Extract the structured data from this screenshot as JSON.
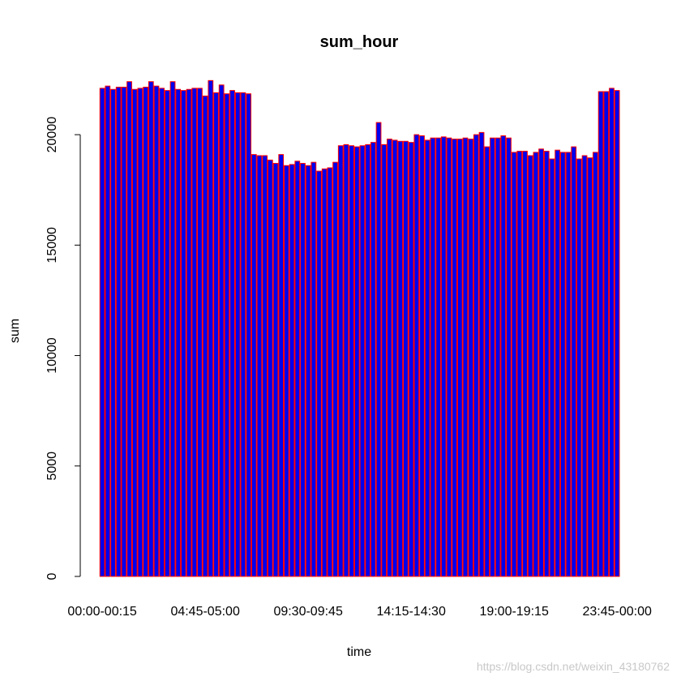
{
  "chart_data": {
    "type": "bar",
    "title": "sum_hour",
    "xlabel": "time",
    "ylabel": "sum",
    "ylim": [
      0,
      22500
    ],
    "y_ticks": [
      0,
      5000,
      10000,
      15000,
      20000
    ],
    "x_tick_labels": [
      {
        "index": 0,
        "label": "00:00-00:15"
      },
      {
        "index": 19,
        "label": "04:45-05:00"
      },
      {
        "index": 38,
        "label": "09:30-09:45"
      },
      {
        "index": 57,
        "label": "14:15-14:30"
      },
      {
        "index": 76,
        "label": "19:00-19:15"
      },
      {
        "index": 95,
        "label": "23:45-00:00"
      }
    ],
    "bar_fill": "#0000ee",
    "bar_border": "#ff0000",
    "grid": false,
    "values": [
      22100,
      22200,
      22050,
      22150,
      22150,
      22400,
      22050,
      22100,
      22150,
      22400,
      22200,
      22100,
      22000,
      22400,
      22050,
      22000,
      22050,
      22100,
      22100,
      21750,
      22450,
      21900,
      22250,
      21850,
      22000,
      21900,
      21900,
      21850,
      19100,
      19050,
      19050,
      18850,
      18700,
      19100,
      18600,
      18650,
      18800,
      18700,
      18600,
      18750,
      18350,
      18450,
      18500,
      18750,
      19500,
      19550,
      19500,
      19450,
      19500,
      19550,
      19650,
      20550,
      19550,
      19800,
      19750,
      19700,
      19700,
      19650,
      20000,
      19950,
      19750,
      19850,
      19850,
      19900,
      19850,
      19800,
      19800,
      19850,
      19800,
      20000,
      20100,
      19450,
      19850,
      19850,
      19950,
      19850,
      19200,
      19250,
      19250,
      19050,
      19200,
      19350,
      19250,
      18900,
      19300,
      19200,
      19200,
      19450,
      18900,
      19050,
      18950,
      19200,
      21950,
      21950,
      22100,
      22000
    ]
  },
  "watermark": "https://blog.csdn.net/weixin_43180762"
}
